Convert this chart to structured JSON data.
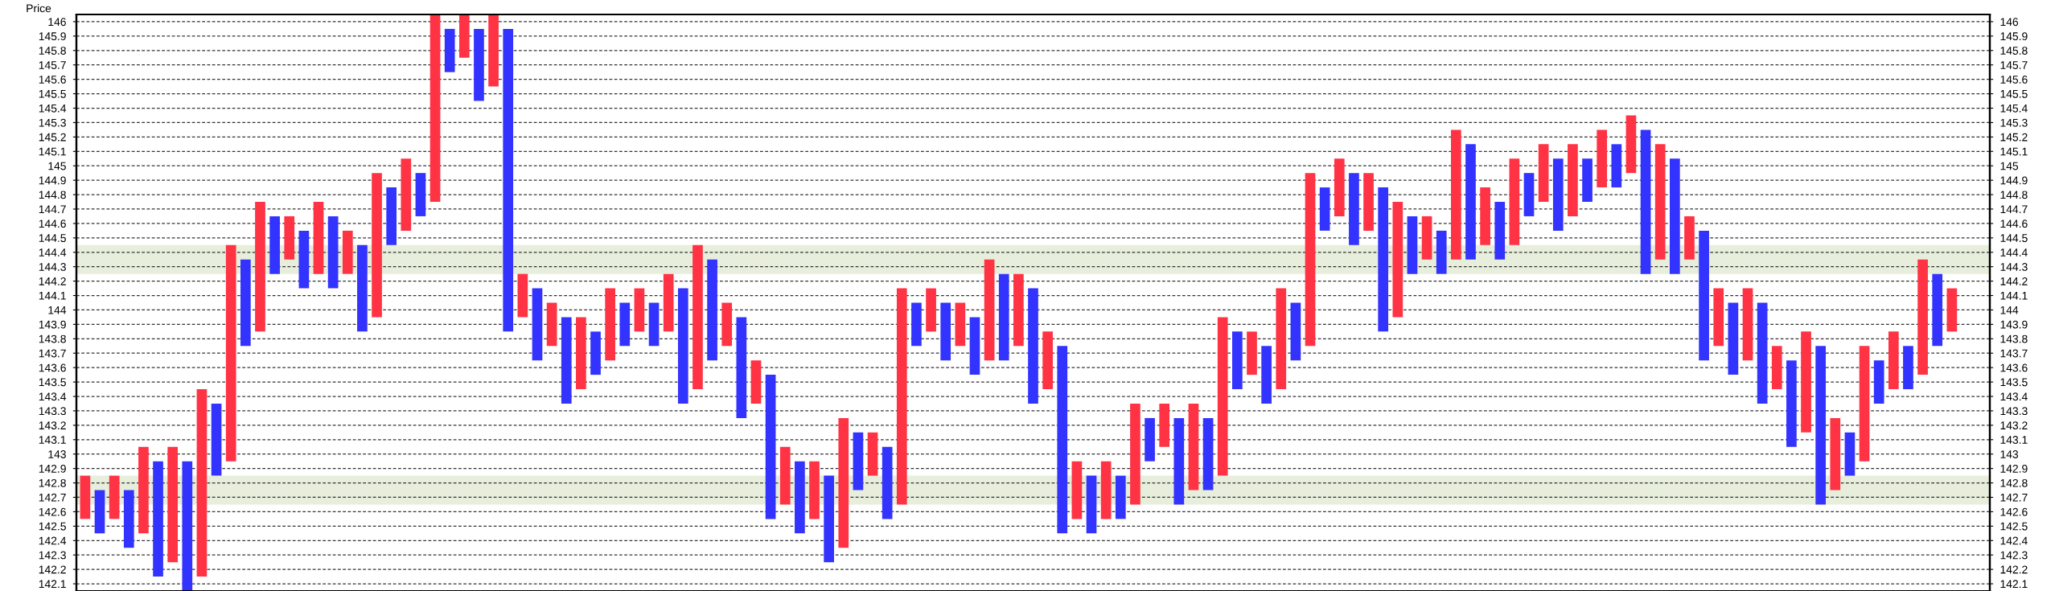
{
  "chart_data": {
    "type": "bar",
    "ylabel": "Price",
    "categories": [
      null,
      null,
      null,
      null,
      null,
      null,
      null,
      null,
      null,
      null,
      null,
      null,
      null,
      null,
      null,
      null,
      null,
      null,
      null,
      null,
      null,
      null,
      null,
      null,
      null,
      null,
      null,
      null,
      null,
      null,
      null,
      null,
      null,
      null,
      null,
      null,
      null,
      null,
      null,
      null,
      null,
      null,
      null,
      null,
      null,
      null,
      null,
      null,
      null,
      null,
      null,
      null,
      null,
      null,
      null,
      null,
      null,
      null,
      null,
      null,
      null,
      null,
      null,
      null,
      null,
      null,
      null,
      null,
      null,
      null,
      null,
      null,
      null,
      null,
      null,
      null,
      null,
      null,
      null,
      null,
      null,
      null,
      null,
      null,
      null,
      null,
      null,
      null,
      null,
      null,
      null,
      null,
      null,
      null,
      null,
      null,
      null,
      null,
      null,
      null,
      null,
      null,
      null,
      null,
      null,
      null,
      null,
      null,
      null,
      null,
      null,
      null,
      null,
      null,
      null,
      null,
      null,
      null,
      null,
      null,
      null,
      null,
      null,
      null,
      null,
      null,
      null,
      null,
      null
    ],
    "base": [
      142.55,
      142.45,
      142.55,
      142.35,
      142.45,
      142.15,
      142.25,
      142.05,
      142.15,
      142.85,
      142.95,
      143.75,
      143.85,
      144.25,
      144.35,
      144.15,
      144.25,
      144.15,
      144.25,
      143.85,
      143.95,
      144.45,
      144.55,
      144.65,
      144.75,
      145.65,
      145.75,
      145.45,
      145.55,
      143.85,
      143.95,
      143.65,
      143.75,
      143.35,
      143.45,
      143.55,
      143.65,
      143.75,
      143.85,
      143.75,
      143.85,
      143.35,
      143.45,
      143.65,
      143.75,
      143.25,
      143.35,
      142.55,
      142.65,
      142.45,
      142.55,
      142.25,
      142.35,
      142.75,
      142.85,
      142.55,
      142.65,
      143.75,
      143.85,
      143.65,
      143.75,
      143.55,
      143.65,
      143.65,
      143.75,
      143.35,
      143.45,
      142.45,
      142.55,
      142.45,
      142.55,
      142.55,
      142.65,
      142.95,
      143.05,
      142.65,
      142.75,
      142.75,
      142.85,
      143.45,
      143.55,
      143.35,
      143.45,
      143.65,
      143.75,
      144.55,
      144.65,
      144.45,
      144.55,
      143.85,
      143.95,
      144.25,
      144.35,
      144.25,
      144.35,
      144.35,
      144.45,
      144.35,
      144.45,
      144.65,
      144.75,
      144.55,
      144.65,
      144.75,
      144.85,
      144.85,
      144.95,
      144.25,
      144.35,
      144.25,
      144.35,
      143.65,
      143.75,
      143.55,
      143.65,
      143.35,
      143.45,
      143.05,
      143.15,
      142.65,
      142.75,
      142.85,
      142.95,
      143.35,
      143.45,
      143.45,
      143.55,
      143.75,
      143.85
    ],
    "values": [
      0.3,
      0.3,
      0.3,
      0.4,
      0.6,
      0.8,
      0.8,
      0.9,
      1.3,
      0.5,
      1.5,
      0.6,
      0.9,
      0.4,
      0.3,
      0.4,
      0.5,
      0.5,
      0.3,
      0.6,
      1,
      0.4,
      0.5,
      0.3,
      1.3,
      0.3,
      0.3,
      0.5,
      0.5,
      2.1,
      0.3,
      0.5,
      0.3,
      0.6,
      0.5,
      0.3,
      0.5,
      0.3,
      0.3,
      0.3,
      0.4,
      0.8,
      1,
      0.7,
      0.3,
      0.7,
      0.3,
      1,
      0.4,
      0.5,
      0.4,
      0.6,
      0.9,
      0.4,
      0.3,
      0.5,
      1.5,
      0.3,
      0.3,
      0.4,
      0.3,
      0.4,
      0.7,
      0.6,
      0.5,
      0.8,
      0.4,
      1.3,
      0.4,
      0.4,
      0.4,
      0.3,
      0.7,
      0.3,
      0.3,
      0.6,
      0.6,
      0.5,
      1.1,
      0.4,
      0.3,
      0.4,
      0.7,
      0.4,
      1.2,
      0.3,
      0.4,
      0.5,
      0.4,
      1,
      0.8,
      0.4,
      0.3,
      0.3,
      0.9,
      0.8,
      0.4,
      0.4,
      0.6,
      0.3,
      0.4,
      0.5,
      0.5,
      0.3,
      0.4,
      0.3,
      0.4,
      1,
      0.8,
      0.8,
      0.3,
      0.9,
      0.4,
      0.5,
      0.5,
      0.7,
      0.3,
      0.6,
      0.7,
      1.1,
      0.5,
      0.3,
      0.8,
      0.3,
      0.4,
      0.3,
      0.8,
      0.5,
      0.3
    ],
    "colors": [
      "#ff3344",
      "#3333ff",
      "#ff3344",
      "#3333ff",
      "#ff3344",
      "#3333ff",
      "#ff3344",
      "#3333ff",
      "#ff3344",
      "#3333ff",
      "#ff3344",
      "#3333ff",
      "#ff3344",
      "#3333ff",
      "#ff3344",
      "#3333ff",
      "#ff3344",
      "#3333ff",
      "#ff3344",
      "#3333ff",
      "#ff3344",
      "#3333ff",
      "#ff3344",
      "#3333ff",
      "#ff3344",
      "#3333ff",
      "#ff3344",
      "#3333ff",
      "#ff3344",
      "#3333ff",
      "#ff3344",
      "#3333ff",
      "#ff3344",
      "#3333ff",
      "#ff3344",
      "#3333ff",
      "#ff3344",
      "#3333ff",
      "#ff3344",
      "#3333ff",
      "#ff3344",
      "#3333ff",
      "#ff3344",
      "#3333ff",
      "#ff3344",
      "#3333ff",
      "#ff3344",
      "#3333ff",
      "#ff3344",
      "#3333ff",
      "#ff3344",
      "#3333ff",
      "#ff3344",
      "#3333ff",
      "#ff3344",
      "#3333ff",
      "#ff3344",
      "#3333ff",
      "#ff3344",
      "#3333ff",
      "#ff3344",
      "#3333ff",
      "#ff3344",
      "#3333ff",
      "#ff3344",
      "#3333ff",
      "#ff3344",
      "#3333ff",
      "#ff3344",
      "#3333ff",
      "#ff3344",
      "#3333ff",
      "#ff3344",
      "#3333ff",
      "#ff3344",
      "#3333ff",
      "#ff3344",
      "#3333ff",
      "#ff3344",
      "#3333ff",
      "#ff3344",
      "#3333ff",
      "#ff3344",
      "#3333ff",
      "#ff3344",
      "#3333ff",
      "#ff3344",
      "#3333ff",
      "#ff3344",
      "#3333ff",
      "#ff3344",
      "#3333ff",
      "#ff3344",
      "#3333ff",
      "#ff3344",
      "#3333ff",
      "#ff3344",
      "#3333ff",
      "#ff3344",
      "#3333ff",
      "#ff3344",
      "#3333ff",
      "#ff3344",
      "#3333ff",
      "#ff3344",
      "#3333ff",
      "#ff3344",
      "#3333ff",
      "#ff3344",
      "#3333ff",
      "#ff3344",
      "#3333ff",
      "#ff3344",
      "#3333ff",
      "#ff3344",
      "#3333ff",
      "#ff3344",
      "#3333ff",
      "#ff3344",
      "#3333ff",
      "#ff3344",
      "#3333ff",
      "#ff3344",
      "#3333ff",
      "#ff3344",
      "#3333ff",
      "#ff3344",
      "#3333ff",
      "#ff3344"
    ],
    "ylim": [
      142.05,
      146.05
    ],
    "yticks": [
      142.1,
      142.2,
      142.3,
      142.4,
      142.5,
      142.6,
      142.7,
      142.8,
      142.9,
      143,
      143.1,
      143.2,
      143.3,
      143.4,
      143.5,
      143.6,
      143.7,
      143.8,
      143.9,
      144,
      144.1,
      144.2,
      144.3,
      144.4,
      144.5,
      144.6,
      144.7,
      144.8,
      144.9,
      145,
      145.1,
      145.2,
      145.3,
      145.4,
      145.5,
      145.6,
      145.7,
      145.8,
      145.9,
      146
    ],
    "y2lim": [
      142.05,
      146.05
    ],
    "y2ticks": [
      142.1,
      142.2,
      142.3,
      142.4,
      142.5,
      142.6,
      142.7,
      142.8,
      142.9,
      143,
      143.1,
      143.2,
      143.3,
      143.4,
      143.5,
      143.6,
      143.7,
      143.8,
      143.9,
      144,
      144.1,
      144.2,
      144.3,
      144.4,
      144.5,
      144.6,
      144.7,
      144.8,
      144.9,
      145,
      145.1,
      145.2,
      145.3,
      145.4,
      145.5,
      145.6,
      145.7,
      145.8,
      145.9,
      146
    ],
    "tick_labels": "y",
    "grid": "y",
    "bands": [
      {
        "axis": "y",
        "from": 144.25,
        "to": 144.45,
        "color": "#e8eedc"
      },
      {
        "axis": "y",
        "from": 142.65,
        "to": 142.85,
        "color": "#e8eedc"
      }
    ]
  }
}
